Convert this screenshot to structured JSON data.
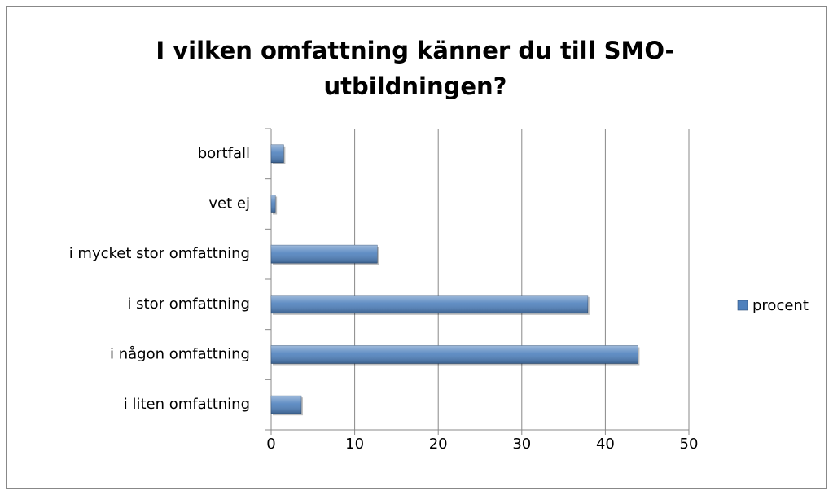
{
  "chart_data": {
    "type": "bar",
    "orientation": "horizontal",
    "title": "I vilken omfattning känner du till SMO-utbildningen?",
    "categories": [
      "bortfall",
      "vet ej",
      "i mycket stor omfattning",
      "i stor omfattning",
      "i någon omfattning",
      "i liten omfattning"
    ],
    "series": [
      {
        "name": "procent",
        "color": "#4f81bd",
        "values": [
          1.5,
          0.5,
          12.7,
          37.9,
          43.9,
          3.6
        ]
      }
    ],
    "xlim": [
      0,
      50
    ],
    "xticks": [
      0,
      10,
      20,
      30,
      40,
      50
    ],
    "grid": true,
    "legend": "right"
  }
}
